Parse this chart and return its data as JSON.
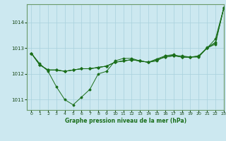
{
  "title": "Graphe pression niveau de la mer (hPa)",
  "background_color": "#cce8f0",
  "grid_color": "#a8d0dc",
  "line_color": "#1a6e1a",
  "spine_color": "#6a9a6a",
  "xlim": [
    -0.5,
    23
  ],
  "ylim": [
    1010.6,
    1014.7
  ],
  "yticks": [
    1011,
    1012,
    1013,
    1014
  ],
  "xticks": [
    0,
    1,
    2,
    3,
    4,
    5,
    6,
    7,
    8,
    9,
    10,
    11,
    12,
    13,
    14,
    15,
    16,
    17,
    18,
    19,
    20,
    21,
    22,
    23
  ],
  "series": [
    [
      1012.8,
      1012.4,
      1012.1,
      1011.5,
      1011.0,
      1010.8,
      1011.1,
      1011.4,
      1012.0,
      1012.1,
      1012.5,
      1012.6,
      1012.6,
      1012.5,
      1012.45,
      1012.5,
      1012.7,
      1012.75,
      1012.65,
      1012.65,
      1012.65,
      1013.0,
      1013.35,
      1014.55
    ],
    [
      1012.8,
      1012.35,
      1012.15,
      1012.15,
      1012.1,
      1012.15,
      1012.2,
      1012.2,
      1012.25,
      1012.3,
      1012.45,
      1012.5,
      1012.55,
      1012.5,
      1012.45,
      1012.55,
      1012.65,
      1012.7,
      1012.7,
      1012.65,
      1012.7,
      1013.0,
      1013.15,
      1014.55
    ],
    [
      1012.8,
      1012.35,
      1012.15,
      1012.15,
      1012.1,
      1012.15,
      1012.2,
      1012.2,
      1012.25,
      1012.3,
      1012.45,
      1012.5,
      1012.55,
      1012.5,
      1012.45,
      1012.55,
      1012.65,
      1012.7,
      1012.65,
      1012.65,
      1012.68,
      1013.0,
      1013.2,
      1014.55
    ],
    [
      1012.8,
      1012.35,
      1012.15,
      1012.15,
      1012.1,
      1012.15,
      1012.2,
      1012.2,
      1012.25,
      1012.3,
      1012.45,
      1012.5,
      1012.55,
      1012.5,
      1012.45,
      1012.58,
      1012.7,
      1012.72,
      1012.65,
      1012.65,
      1012.68,
      1013.02,
      1013.22,
      1014.55
    ]
  ]
}
